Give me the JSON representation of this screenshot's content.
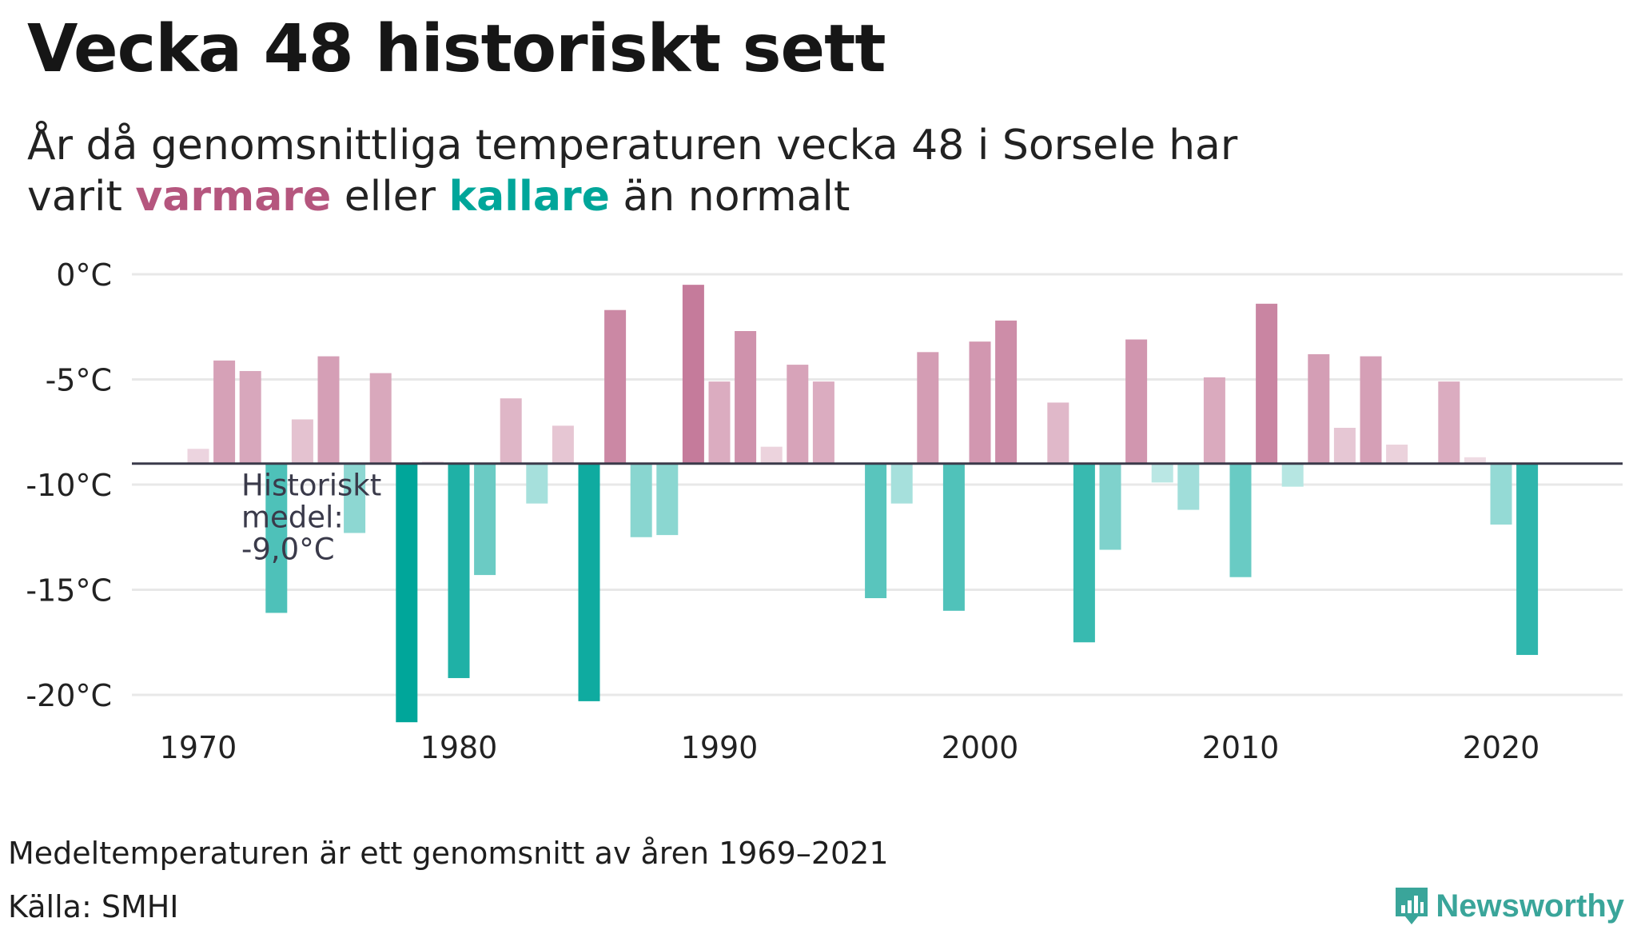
{
  "title": "Vecka 48 historiskt sett",
  "subtitle": {
    "part1": "År då genomsnittliga temperaturen vecka 48 i Sorsele har varit ",
    "warm_word": "varmare",
    "part2": " eller ",
    "cold_word": "kallare",
    "part3": " än normalt"
  },
  "colors": {
    "warm": "#b5567e",
    "cold": "#00a69a",
    "baseline": "#3a3a4a",
    "grid": "#e8e8e8"
  },
  "chart_data": {
    "type": "bar",
    "x": [
      1970,
      1971,
      1972,
      1973,
      1974,
      1975,
      1976,
      1977,
      1978,
      1979,
      1980,
      1981,
      1982,
      1983,
      1984,
      1985,
      1986,
      1987,
      1988,
      1989,
      1990,
      1991,
      1992,
      1993,
      1994,
      1995,
      1996,
      1997,
      1998,
      1999,
      2000,
      2001,
      2002,
      2003,
      2004,
      2005,
      2006,
      2007,
      2008,
      2009,
      2010,
      2011,
      2012,
      2013,
      2014,
      2015,
      2016,
      2017,
      2018,
      2019,
      2020,
      2021
    ],
    "values": [
      -8.3,
      -4.1,
      -4.6,
      -16.1,
      -6.9,
      -3.9,
      -12.3,
      -4.7,
      -21.3,
      -8.9,
      -19.2,
      -14.3,
      -5.9,
      -10.9,
      -7.2,
      -20.3,
      -1.7,
      -12.5,
      -12.4,
      -0.5,
      -5.1,
      -2.7,
      -8.2,
      -4.3,
      -5.1,
      -9.0,
      -15.4,
      -10.9,
      -3.7,
      -16.0,
      -3.2,
      -2.2,
      -9.0,
      -6.1,
      -17.5,
      -13.1,
      -3.1,
      -9.9,
      -11.2,
      -4.9,
      -14.4,
      -1.4,
      -10.1,
      -3.8,
      -7.3,
      -3.9,
      -8.1,
      -9.0,
      -5.1,
      -8.7,
      -11.9,
      -18.1
    ],
    "mean": -9.0,
    "mean_label": [
      "Historiskt",
      "medel:",
      "-9,0°C"
    ],
    "ylim": [
      -22,
      0.5
    ],
    "yticks": [
      0,
      -5,
      -10,
      -15,
      -20
    ],
    "ytick_labels": [
      "0°C",
      "-5°C",
      "-10°C",
      "-15°C",
      "-20°C"
    ],
    "xticks": [
      1970,
      1980,
      1990,
      2000,
      2010,
      2020
    ],
    "xtick_labels": [
      "1970",
      "1980",
      "1990",
      "2000",
      "2010",
      "2020"
    ]
  },
  "footer": {
    "note": "Medeltemperaturen är ett genomsnitt av åren 1969–2021",
    "source": "Källa: SMHI",
    "brand": "Newsworthy"
  }
}
